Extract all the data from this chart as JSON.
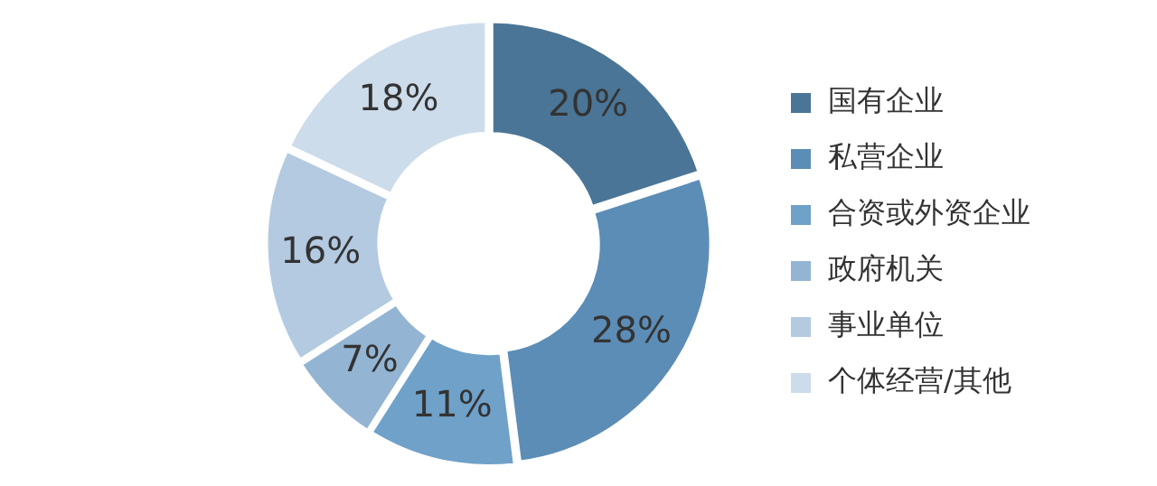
{
  "chart_data": {
    "type": "donut",
    "categories": [
      "国有企业",
      "私营企业",
      "合资或外资企业",
      "政府机关",
      "事业单位",
      "个体经营/其他"
    ],
    "values": [
      20,
      28,
      11,
      7,
      16,
      18
    ],
    "colors": [
      "#4a7596",
      "#5b8db6",
      "#6fa1c9",
      "#93b5d3",
      "#b3cae1",
      "#cddceb"
    ],
    "value_labels": [
      "20%",
      "28%",
      "11%",
      "7%",
      "16%",
      "18%"
    ],
    "legend": "right"
  }
}
